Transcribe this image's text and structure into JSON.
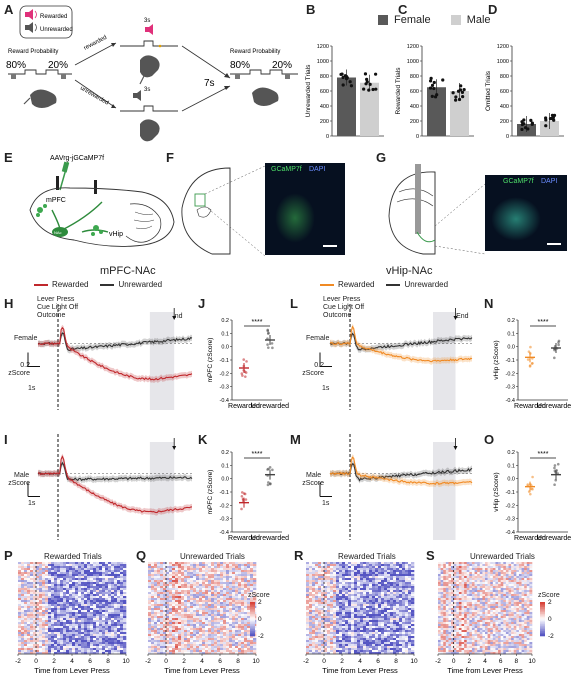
{
  "panels": {
    "A": "A",
    "B": "B",
    "C": "C",
    "D": "D",
    "E": "E",
    "F": "F",
    "G": "G",
    "H": "H",
    "I": "I",
    "J": "J",
    "K": "K",
    "L": "L",
    "M": "M",
    "N": "N",
    "O": "O",
    "P": "P",
    "Q": "Q",
    "R": "R",
    "S": "S"
  },
  "panelA": {
    "legend_rewarded": "Rewarded",
    "legend_unrewarded": "Unrewarded",
    "reward_probability": "Reward Probability",
    "pct_left": "80%",
    "pct_right": "20%",
    "rewarded": "rewarded",
    "unrewarded": "unrewarded",
    "delay_top": "3s",
    "delay_bottom": "3s",
    "iti": "7s"
  },
  "bar_legend": {
    "female": "Female",
    "male": "Male",
    "female_color": "#595959",
    "male_color": "#cfcfcf"
  },
  "chart_data": [
    {
      "panel": "B",
      "type": "bar",
      "categories": [
        "Female",
        "Male"
      ],
      "values": [
        780,
        710
      ],
      "ylabel": "Unrewarded Trials",
      "ylim": [
        0,
        1200
      ],
      "yticks": [
        0,
        200,
        400,
        600,
        800,
        1000,
        1200
      ]
    },
    {
      "panel": "C",
      "type": "bar",
      "categories": [
        "Female",
        "Male"
      ],
      "values": [
        650,
        600
      ],
      "ylabel": "Rewarded Trials",
      "ylim": [
        0,
        1200
      ],
      "yticks": [
        0,
        200,
        400,
        600,
        800,
        1000,
        1200
      ]
    },
    {
      "panel": "D",
      "type": "bar",
      "categories": [
        "Female",
        "Male"
      ],
      "values": [
        160,
        200
      ],
      "ylabel": "Omitted Trials",
      "ylim": [
        0,
        1200
      ],
      "yticks": [
        0,
        200,
        400,
        600,
        800,
        1000,
        1200
      ]
    },
    {
      "panel": "J",
      "type": "scatter",
      "categories": [
        "Rewarded",
        "Unrewarded"
      ],
      "means": [
        -0.16,
        0.05
      ],
      "ylabel": "mPFC (zScore)",
      "ylim": [
        -0.4,
        0.2
      ],
      "yticks": [
        -0.4,
        -0.3,
        -0.2,
        -0.1,
        0.0,
        0.1,
        0.2
      ],
      "significance": "****"
    },
    {
      "panel": "K",
      "type": "scatter",
      "categories": [
        "Rewarded",
        "Unrewarded"
      ],
      "means": [
        -0.18,
        0.03
      ],
      "ylabel": "mPFC (zScore)",
      "ylim": [
        -0.4,
        0.2
      ],
      "yticks": [
        -0.4,
        -0.3,
        -0.2,
        -0.1,
        0.0,
        0.1,
        0.2
      ],
      "significance": "****"
    },
    {
      "panel": "N",
      "type": "scatter",
      "categories": [
        "Rewarded",
        "Unrewarded"
      ],
      "means": [
        -0.08,
        -0.01
      ],
      "ylabel": "vHip (zScore)",
      "ylim": [
        -0.4,
        0.2
      ],
      "yticks": [
        -0.4,
        -0.3,
        -0.2,
        -0.1,
        0.0,
        0.1,
        0.2
      ],
      "significance": "****"
    },
    {
      "panel": "O",
      "type": "scatter",
      "categories": [
        "Rewarded",
        "Unrewarded"
      ],
      "means": [
        -0.06,
        0.03
      ],
      "ylabel": "vHip (zScore)",
      "ylim": [
        -0.4,
        0.2
      ],
      "yticks": [
        -0.4,
        -0.3,
        -0.2,
        -0.1,
        0.0,
        0.1,
        0.2
      ],
      "significance": "****"
    }
  ],
  "panelE": {
    "virus": "AAVrg-jGCaMP7f",
    "mpfc": "mPFC",
    "nac": "NAc",
    "vhip": "vHip"
  },
  "panelF": {
    "gcamp": "GCaMP7f",
    "dapi": "DAPI"
  },
  "panelG": {
    "gcamp": "GCaMP7f",
    "dapi": "DAPI"
  },
  "traces": {
    "mpfc_title": "mPFC-NAc",
    "vhip_title": "vHip-NAc",
    "rewarded": "Rewarded",
    "unrewarded": "Unrewarded",
    "mpfc_reward_color": "#c0282c",
    "vhip_reward_color": "#f08a24",
    "unreward_color": "#333333",
    "event_line1": "Lever Press",
    "event_line2": "Cue Light Off",
    "event_line3": "Outcome",
    "iti_end": "ITI End",
    "female": "Female",
    "male": "Male",
    "scale_y": "0.2",
    "scale_unit": "zScore",
    "scale_x": "1s"
  },
  "heatmaps": {
    "rewarded_title": "Rewarded Trials",
    "unrewarded_title": "Unrewarded Trials",
    "xlabel": "Time from Lever Press",
    "xticks": [
      "-2",
      "0",
      "2",
      "4",
      "6",
      "8",
      "10"
    ],
    "colorbar_label": "zScore",
    "colorbar_ticks": [
      "2",
      "0",
      "-2"
    ]
  }
}
